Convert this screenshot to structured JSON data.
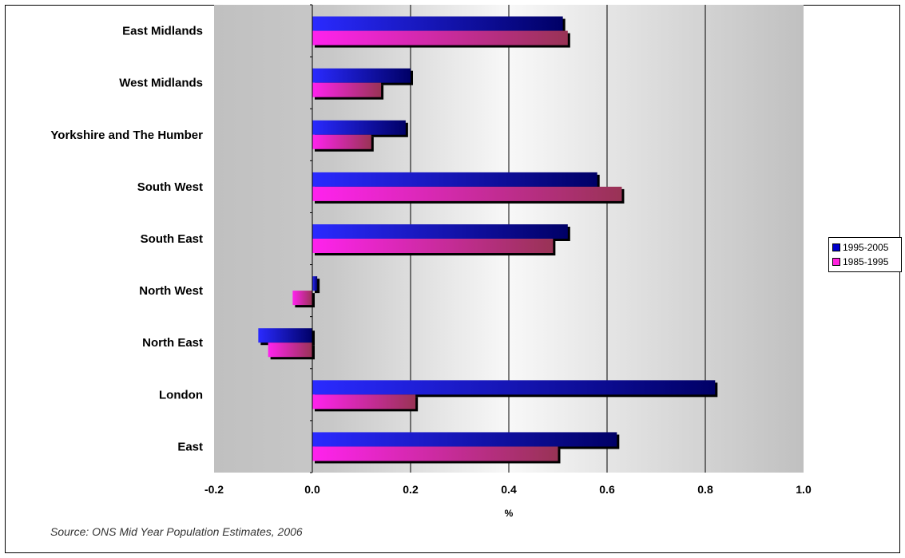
{
  "chart_data": {
    "type": "bar",
    "orientation": "horizontal",
    "categories": [
      "East Midlands",
      "West Midlands",
      "Yorkshire and The Humber",
      "South West",
      "South East",
      "North West",
      "North East",
      "London",
      "East"
    ],
    "series": [
      {
        "name": "1995-2005",
        "values": [
          0.51,
          0.2,
          0.19,
          0.58,
          0.52,
          0.01,
          -0.11,
          0.82,
          0.62
        ],
        "color": "#1a1aff",
        "color_dark": "#000066"
      },
      {
        "name": "1985-1995",
        "values": [
          0.52,
          0.14,
          0.12,
          0.63,
          0.49,
          -0.04,
          -0.09,
          0.21,
          0.5
        ],
        "color": "#ff22dd",
        "color_dark": "#993366"
      }
    ],
    "xlim": [
      -0.2,
      1.0
    ],
    "xticks": [
      "-0.2",
      "0.0",
      "0.2",
      "0.4",
      "0.6",
      "0.8",
      "1.0"
    ],
    "xtick_values": [
      -0.2,
      0.0,
      0.2,
      0.4,
      0.6,
      0.8,
      1.0
    ],
    "xlabel": "%",
    "ylabel": "",
    "grid": true,
    "legend_position": "right"
  },
  "legend": {
    "items": [
      {
        "label": "1995-2005",
        "color": "#0000cc"
      },
      {
        "label": "1985-1995",
        "color": "#ff22dd"
      }
    ]
  },
  "source": "Source: ONS Mid Year Population Estimates, 2006"
}
